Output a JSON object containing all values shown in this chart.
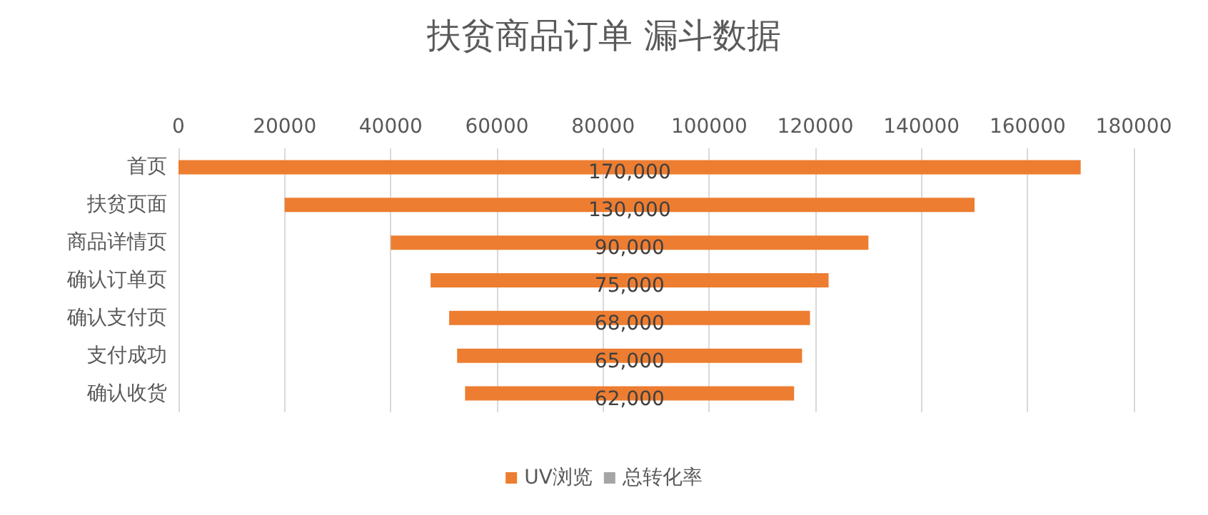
{
  "chart_data": {
    "type": "bar",
    "title": "扶贫商品订单 漏斗数据",
    "orientation": "horizontal",
    "categories": [
      "首页",
      "扶贫页面",
      "商品详情页",
      "确认订单页",
      "确认支付页",
      "支付成功",
      "确认收货"
    ],
    "series": [
      {
        "name": "UV浏览",
        "color": "#ed7d31",
        "values": [
          170000,
          130000,
          90000,
          75000,
          68000,
          65000,
          62000
        ],
        "base": [
          0,
          20000,
          40000,
          47500,
          51000,
          52500,
          54000
        ],
        "value_labels": [
          "170,000",
          "130,000",
          "90,000",
          "75,000",
          "68,000",
          "65,000",
          "62,000"
        ]
      },
      {
        "name": "总转化率",
        "color": "#a5a5a5",
        "values": [
          null,
          null,
          null,
          null,
          null,
          null,
          null
        ]
      }
    ],
    "xlim": [
      0,
      180000
    ],
    "xticks": [
      0,
      20000,
      40000,
      60000,
      80000,
      100000,
      120000,
      140000,
      160000,
      180000
    ],
    "grid": "x",
    "legend": "bottom"
  }
}
